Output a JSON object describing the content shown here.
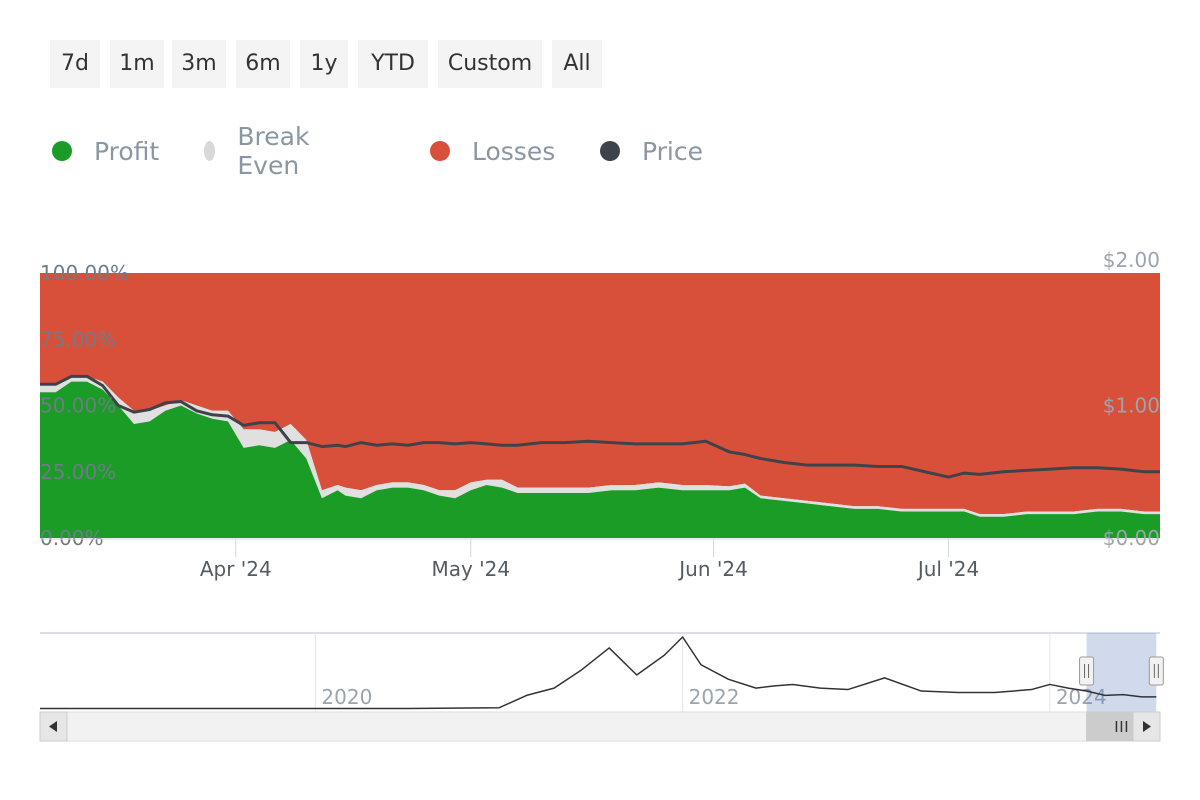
{
  "range_selector": {
    "buttons": [
      "7d",
      "1m",
      "3m",
      "6m",
      "1y",
      "YTD",
      "Custom",
      "All"
    ]
  },
  "legend": {
    "items": [
      {
        "label": "Profit",
        "color": "#1a9c27"
      },
      {
        "label": "Break Even",
        "color": "#d9d9d9"
      },
      {
        "label": "Losses",
        "color": "#d9503a"
      },
      {
        "label": "Price",
        "color": "#3e434b"
      }
    ]
  },
  "colors": {
    "profit": "#1a9c27",
    "break_even": "#e0e0e0",
    "losses": "#d9503a",
    "price": "#3e434b"
  },
  "chart_data": [
    {
      "type": "area",
      "stacked_percent": true,
      "left_axis_ticks": [
        "0.00%",
        "25.00%",
        "50.00%",
        "75.00%",
        "100.00%"
      ],
      "left_axis_values": [
        0,
        25,
        50,
        75,
        100
      ],
      "right_axis_ticks": [
        "$0.00",
        "$1.00",
        "$2.00"
      ],
      "right_axis_values": [
        0,
        1,
        2
      ],
      "x_tick_labels": [
        "Apr '24",
        "May '24",
        "Jun '24",
        "Jul '24"
      ],
      "x_tick_dates": [
        "2024-04-01",
        "2024-05-01",
        "2024-06-01",
        "2024-07-01"
      ],
      "x_range": [
        "2024-03-07",
        "2024-07-28"
      ],
      "x": [
        "2024-03-07",
        "2024-03-09",
        "2024-03-11",
        "2024-03-13",
        "2024-03-15",
        "2024-03-17",
        "2024-03-19",
        "2024-03-21",
        "2024-03-23",
        "2024-03-25",
        "2024-03-27",
        "2024-03-29",
        "2024-03-31",
        "2024-04-02",
        "2024-04-04",
        "2024-04-06",
        "2024-04-08",
        "2024-04-10",
        "2024-04-12",
        "2024-04-14",
        "2024-04-15",
        "2024-04-17",
        "2024-04-19",
        "2024-04-21",
        "2024-04-23",
        "2024-04-25",
        "2024-04-27",
        "2024-04-29",
        "2024-05-01",
        "2024-05-03",
        "2024-05-05",
        "2024-05-07",
        "2024-05-10",
        "2024-05-13",
        "2024-05-16",
        "2024-05-19",
        "2024-05-22",
        "2024-05-25",
        "2024-05-28",
        "2024-05-31",
        "2024-06-03",
        "2024-06-05",
        "2024-06-07",
        "2024-06-10",
        "2024-06-13",
        "2024-06-16",
        "2024-06-19",
        "2024-06-22",
        "2024-06-25",
        "2024-06-28",
        "2024-07-01",
        "2024-07-03",
        "2024-07-05",
        "2024-07-08",
        "2024-07-11",
        "2024-07-14",
        "2024-07-17",
        "2024-07-20",
        "2024-07-23",
        "2024-07-26",
        "2024-07-28"
      ],
      "series": [
        {
          "name": "Profit",
          "values": [
            55,
            55,
            59,
            59,
            56,
            50,
            43,
            44,
            48,
            50,
            47,
            45,
            44,
            34,
            35,
            34,
            37,
            30,
            15,
            18,
            16,
            15,
            18,
            19,
            19,
            18,
            16,
            15,
            18,
            20,
            19,
            17,
            17,
            17,
            17,
            18,
            18,
            19,
            18,
            18,
            18,
            19,
            15,
            14,
            13,
            12,
            11,
            11,
            10,
            10,
            10,
            10,
            8,
            8,
            9,
            9,
            9,
            10,
            10,
            9,
            9
          ]
        },
        {
          "name": "Break Even",
          "values": [
            3,
            3,
            2,
            2,
            3,
            3,
            5,
            4,
            2,
            2,
            3,
            3,
            4,
            7,
            6,
            6,
            6,
            7,
            3,
            2,
            3,
            3,
            2,
            2,
            2,
            2,
            2,
            3,
            3,
            2,
            3,
            2,
            2,
            2,
            2,
            2,
            2,
            2,
            2,
            2,
            1.5,
            1.5,
            1,
            1,
            1,
            1,
            1,
            1,
            1,
            1,
            1,
            1,
            1,
            1,
            1,
            1,
            1,
            1,
            1,
            1,
            1
          ]
        },
        {
          "name": "Losses",
          "values": [
            42,
            42,
            39,
            39,
            41,
            47,
            52,
            52,
            50,
            48,
            50,
            52,
            52,
            59,
            59,
            60,
            57,
            63,
            82,
            80,
            81,
            82,
            80,
            79,
            79,
            80,
            82,
            82,
            79,
            78,
            78,
            81,
            81,
            81,
            81,
            80,
            80,
            79,
            80,
            80,
            80.5,
            79.5,
            84,
            85,
            86,
            87,
            88,
            88,
            89,
            89,
            89,
            89,
            91,
            91,
            90,
            90,
            90,
            89,
            89,
            90,
            90
          ]
        },
        {
          "name": "Price",
          "values": [
            1.16,
            1.16,
            1.22,
            1.22,
            1.15,
            1.0,
            0.95,
            0.97,
            1.02,
            1.03,
            0.96,
            0.93,
            0.92,
            0.85,
            0.87,
            0.87,
            0.72,
            0.72,
            0.69,
            0.7,
            0.69,
            0.72,
            0.7,
            0.71,
            0.7,
            0.72,
            0.72,
            0.71,
            0.72,
            0.71,
            0.7,
            0.7,
            0.72,
            0.72,
            0.73,
            0.72,
            0.71,
            0.71,
            0.71,
            0.73,
            0.65,
            0.63,
            0.6,
            0.57,
            0.55,
            0.55,
            0.55,
            0.54,
            0.54,
            0.5,
            0.46,
            0.49,
            0.48,
            0.5,
            0.51,
            0.52,
            0.53,
            0.53,
            0.52,
            0.5,
            0.5
          ]
        }
      ]
    },
    {
      "type": "line",
      "role": "navigator",
      "x_tick_labels": [
        "2020",
        "2022",
        "2024"
      ],
      "x_tick_years": [
        2020,
        2022,
        2024
      ],
      "x_range": [
        2018.5,
        2024.6
      ],
      "selected_range": [
        2024.2,
        2024.58
      ],
      "series": [
        {
          "name": "Price",
          "x": [
            2018.5,
            2019.0,
            2019.5,
            2020.0,
            2020.5,
            2021.0,
            2021.15,
            2021.3,
            2021.45,
            2021.6,
            2021.75,
            2021.9,
            2022.0,
            2022.1,
            2022.25,
            2022.4,
            2022.5,
            2022.6,
            2022.75,
            2022.9,
            2023.1,
            2023.3,
            2023.5,
            2023.7,
            2023.9,
            2024.0,
            2024.1,
            2024.2,
            2024.3,
            2024.4,
            2024.5,
            2024.58
          ],
          "values": [
            0.02,
            0.02,
            0.02,
            0.02,
            0.02,
            0.03,
            0.2,
            0.3,
            0.55,
            0.85,
            0.48,
            0.75,
            1.0,
            0.62,
            0.42,
            0.3,
            0.33,
            0.35,
            0.3,
            0.28,
            0.44,
            0.26,
            0.24,
            0.24,
            0.28,
            0.35,
            0.3,
            0.26,
            0.2,
            0.21,
            0.18,
            0.18
          ]
        }
      ]
    }
  ]
}
